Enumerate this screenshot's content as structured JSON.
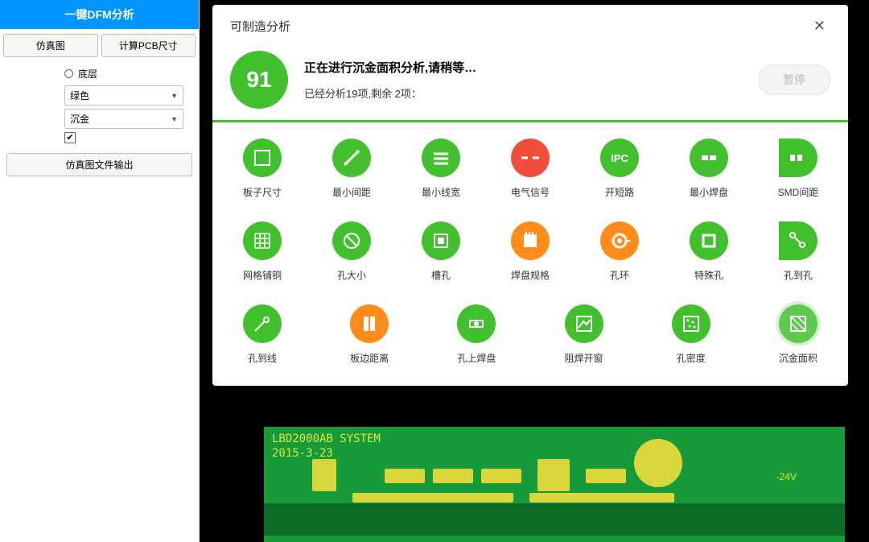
{
  "colors": {
    "primary_blue": "#0095ff",
    "green": "#42c02e",
    "orange": "#ff8c1a",
    "red": "#f04d3a",
    "grey_btn": "#f6f6f6",
    "pcb_green": "#169a3a",
    "pcb_yellow": "#d8d63a"
  },
  "sidebar": {
    "dfm_button": "一键DFM分析",
    "sim_button": "仿真图",
    "calc_button": "计算PCB尺寸",
    "radio_label": "底层",
    "select1": "绿色",
    "select2": "沉金",
    "checkbox_checked": true,
    "export_button": "仿真图文件输出"
  },
  "dialog": {
    "title": "可制造分析",
    "progress_value": "91",
    "status_line": "正在进行沉金面积分析,请稍等…",
    "sub_line": "已经分析19项,剩余 2项：",
    "pause_label": "暂停",
    "items": [
      {
        "label": "板子尺寸",
        "color": "#42c02e",
        "icon": "board",
        "half": false
      },
      {
        "label": "最小间距",
        "color": "#42c02e",
        "icon": "spacing",
        "half": false
      },
      {
        "label": "最小线宽",
        "color": "#42c02e",
        "icon": "linewidth",
        "half": false
      },
      {
        "label": "电气信号",
        "color": "#f04d3a",
        "icon": "signal",
        "half": false
      },
      {
        "label": "开短路",
        "color": "#42c02e",
        "icon": "ipc",
        "half": false
      },
      {
        "label": "最小焊盘",
        "color": "#42c02e",
        "icon": "pad",
        "half": false
      },
      {
        "label": "SMD间距",
        "color": "#42c02e",
        "icon": "smd",
        "half": true
      },
      {
        "label": "网格铺铜",
        "color": "#42c02e",
        "icon": "mesh",
        "half": false
      },
      {
        "label": "孔大小",
        "color": "#42c02e",
        "icon": "holesize",
        "half": false
      },
      {
        "label": "槽孔",
        "color": "#42c02e",
        "icon": "slot",
        "half": false
      },
      {
        "label": "焊盘规格",
        "color": "#ff8c1a",
        "icon": "padspec",
        "half": false
      },
      {
        "label": "孔环",
        "color": "#ff8c1a",
        "icon": "ring",
        "half": false
      },
      {
        "label": "特殊孔",
        "color": "#42c02e",
        "icon": "special",
        "half": false
      },
      {
        "label": "孔到孔",
        "color": "#42c02e",
        "icon": "h2h",
        "half": true
      },
      {
        "label": "孔到线",
        "color": "#42c02e",
        "icon": "h2l",
        "half": false
      },
      {
        "label": "板边距离",
        "color": "#ff8c1a",
        "icon": "edge",
        "half": false
      },
      {
        "label": "孔上焊盘",
        "color": "#42c02e",
        "icon": "viapad",
        "half": false
      },
      {
        "label": "阻焊开窗",
        "color": "#42c02e",
        "icon": "mask",
        "half": false
      },
      {
        "label": "孔密度",
        "color": "#42c02e",
        "icon": "density",
        "half": false
      },
      {
        "label": "沉金面积",
        "color": "#42c02e",
        "icon": "goldarea",
        "half": false,
        "active": true
      }
    ]
  },
  "pcb": {
    "title_line1": "LBD2000AB SYSTEM",
    "title_line2": "2015-3-23",
    "voltage_label": "-24V"
  }
}
